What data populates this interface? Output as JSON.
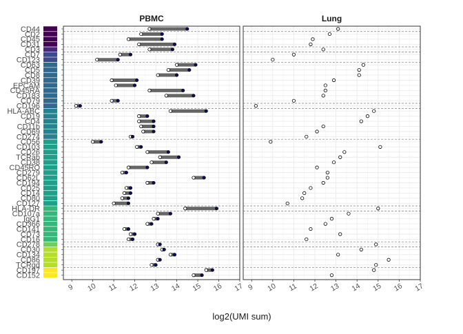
{
  "chart_data": {
    "type": "dumbbell",
    "xlabel": "log2(UMI sum)",
    "xlim": [
      8.6,
      17
    ],
    "x_ticks": [
      9,
      10,
      11,
      12,
      13,
      14,
      15,
      16,
      17
    ],
    "facets": [
      "PBMC",
      "Lung"
    ],
    "markers": [
      "CD44",
      "CD2",
      "CD45",
      "CD31",
      "CD3",
      "CD7",
      "CD123",
      "CD63",
      "CD5",
      "CD8",
      "CD39",
      "EPCAM",
      "CD45RA",
      "CD183",
      "CD79",
      "CD196",
      "HLA-ABC",
      "CD19",
      "CD4",
      "CD11b",
      "CD69",
      "CD274",
      "CD56",
      "CD103",
      "CD26",
      "TCRab",
      "CD38",
      "CD45RO",
      "CD279",
      "CD62L",
      "CD194",
      "CD25",
      "CD14",
      "CD80",
      "CD127",
      "HLA-DR",
      "CD107a",
      "IgG1",
      "CD366",
      "CD141",
      "CD73",
      "CD16",
      "CD278",
      "CD30",
      "CD134",
      "CD86",
      "TCRgd",
      "CD197",
      "CD152"
    ],
    "group_breaks_after": [
      0,
      3,
      4,
      6,
      14,
      15,
      21,
      34,
      35,
      41,
      42,
      46
    ],
    "colors": {
      "low_point": "#ffffff",
      "high_point": "#0d0d5a",
      "segment": "#666666",
      "palette": [
        "#440154",
        "#482878",
        "#3e4989",
        "#31688e",
        "#26828e",
        "#1f9e89",
        "#35b779",
        "#6ece58",
        "#b5de2b",
        "#fde725"
      ]
    },
    "series": [
      {
        "name": "PBMC",
        "low": [
          12.7,
          12.3,
          11.7,
          12.2,
          12.7,
          11.3,
          10.2,
          14.0,
          13.6,
          13.1,
          10.9,
          11.1,
          12.7,
          13.5,
          10.9,
          9.2,
          13.7,
          12.2,
          12.2,
          12.3,
          12.4,
          11.8,
          10.0,
          12.1,
          12.6,
          13.2,
          12.8,
          11.7,
          11.4,
          14.8,
          12.6,
          11.6,
          11.5,
          11.4,
          11.0,
          14.4,
          13.1,
          12.9,
          12.6,
          11.5,
          11.8,
          11.7,
          13.1,
          13.3,
          13.7,
          13.1,
          12.8,
          15.4,
          14.8
        ],
        "high": [
          14.5,
          13.3,
          13.3,
          13.9,
          13.8,
          11.8,
          11.2,
          14.9,
          14.6,
          14.0,
          12.1,
          12.0,
          14.3,
          14.8,
          11.2,
          9.4,
          15.4,
          12.6,
          12.9,
          12.9,
          12.9,
          11.9,
          10.4,
          12.3,
          13.6,
          14.1,
          13.5,
          12.6,
          11.6,
          15.3,
          12.9,
          11.8,
          11.8,
          11.7,
          11.7,
          15.9,
          13.7,
          13.1,
          12.8,
          11.7,
          12.0,
          11.9,
          13.2,
          13.4,
          13.9,
          13.2,
          13.0,
          15.7,
          15.2
        ]
      },
      {
        "name": "Lung",
        "low": [
          13.1,
          12.7,
          11.9,
          11.8,
          12.4,
          11.0,
          10.0,
          14.3,
          14.1,
          14.1,
          12.9,
          12.5,
          12.5,
          12.4,
          11.0,
          9.2,
          14.8,
          14.5,
          14.2,
          12.4,
          12.1,
          11.6,
          9.9,
          15.1,
          13.4,
          13.2,
          12.9,
          12.1,
          12.6,
          12.6,
          12.4,
          11.8,
          11.5,
          11.4,
          10.7,
          15.0,
          13.6,
          12.8,
          12.5,
          11.8,
          13.2,
          11.6,
          14.9,
          14.2,
          13.1,
          15.5,
          14.9,
          14.8,
          12.8
        ]
      }
    ]
  }
}
